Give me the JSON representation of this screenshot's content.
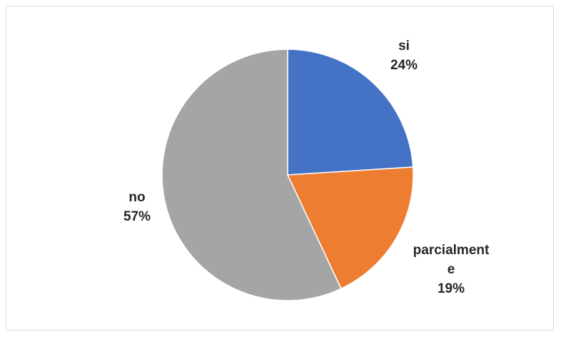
{
  "chart_data": {
    "type": "pie",
    "title": "",
    "slices": [
      {
        "category": "si",
        "value": 24,
        "value_label": "24%",
        "color": "#4472C4"
      },
      {
        "category": "parcialmente",
        "category_lines": [
          "parcialment",
          "e"
        ],
        "value": 19,
        "value_label": "19%",
        "color": "#ED7D31"
      },
      {
        "category": "no",
        "value": 57,
        "value_label": "57%",
        "color": "#A5A5A5"
      }
    ],
    "start_angle": "12 o'clock",
    "direction": "clockwise",
    "legend": "none",
    "data_labels": "category and percentage, outside slices"
  }
}
